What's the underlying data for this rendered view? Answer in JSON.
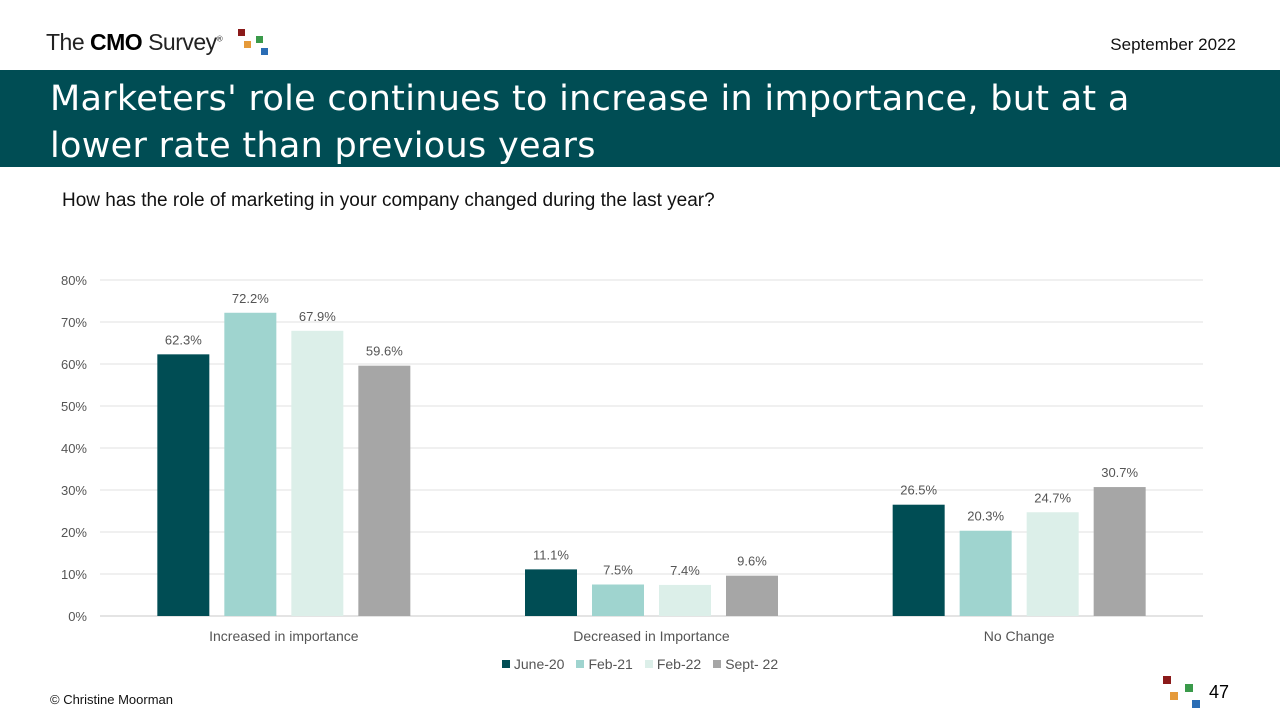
{
  "header": {
    "logo": {
      "prefix": "The ",
      "brand": "CMO",
      "suffix": " Survey",
      "reg": "®"
    },
    "date": "September 2022"
  },
  "banner": {
    "title": "Marketers' role continues to increase in importance, but at a lower rate than previous years"
  },
  "question": "How has the role of marketing in your company changed during the last year?",
  "footer": {
    "copyright": "© Christine Moorman",
    "page_number": "47"
  },
  "colors": {
    "banner": "#004d54",
    "logo_squares": [
      "#8b1a1a",
      "#e59a3a",
      "#3a9a4a",
      "#2a6db5"
    ]
  },
  "chart_data": {
    "type": "bar",
    "categories": [
      "Increased in importance",
      "Decreased in Importance",
      "No Change"
    ],
    "series": [
      {
        "name": "June-20",
        "color": "#004d54",
        "values": [
          62.3,
          11.1,
          26.5
        ],
        "labels": [
          "62.3%",
          "11.1%",
          "26.5%"
        ]
      },
      {
        "name": "Feb-21",
        "color": "#9fd4cf",
        "values": [
          72.2,
          7.5,
          20.3
        ],
        "labels": [
          "72.2%",
          "7.5%",
          "20.3%"
        ]
      },
      {
        "name": "Feb-22",
        "color": "#dcefe9",
        "values": [
          67.9,
          7.4,
          24.7
        ],
        "labels": [
          "67.9%",
          "7.4%",
          "24.7%"
        ]
      },
      {
        "name": "Sept- 22",
        "color": "#a6a6a6",
        "values": [
          59.6,
          9.6,
          30.7
        ],
        "labels": [
          "59.6%",
          "9.6%",
          "30.7%"
        ]
      }
    ],
    "ylim": [
      0,
      80
    ],
    "yticks": [
      0,
      10,
      20,
      30,
      40,
      50,
      60,
      70,
      80
    ],
    "ytick_labels": [
      "0%",
      "10%",
      "20%",
      "30%",
      "40%",
      "50%",
      "60%",
      "70%",
      "80%"
    ],
    "grid": true,
    "legend_position": "bottom"
  }
}
